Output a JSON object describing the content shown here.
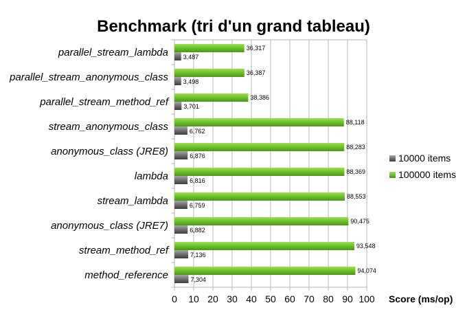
{
  "chart_data": {
    "type": "bar",
    "orientation": "horizontal",
    "title": "Benchmark (tri d'un grand tableau)",
    "xlabel": "Score (ms/op)",
    "ylabel": "",
    "xlim": [
      0,
      100
    ],
    "x_ticks": [
      "0",
      "10",
      "20",
      "30",
      "40",
      "50",
      "60",
      "70",
      "80",
      "90",
      "100"
    ],
    "grid": "vertical",
    "legend_position": "right",
    "categories": [
      "parallel_stream_lambda",
      "parallel_stream_anonymous_class",
      "parallel_stream_method_ref",
      "stream_anonymous_class",
      "anonymous_class (JRE8)",
      "lambda",
      "stream_lambda",
      "anonymous_class (JRE7)",
      "stream_method_ref",
      "method_reference"
    ],
    "series": [
      {
        "name": "100000 items",
        "color": "#6cc02a",
        "values": [
          36.317,
          36.387,
          38.386,
          88.118,
          88.283,
          88.369,
          88.553,
          90.475,
          93.548,
          94.074
        ],
        "labels": [
          "36,317",
          "36,387",
          "38,386",
          "88,118",
          "88,283",
          "88,369",
          "88,553",
          "90,475",
          "93,548",
          "94,074"
        ]
      },
      {
        "name": "10000 items",
        "color": "#6e6e6e",
        "values": [
          3.487,
          3.498,
          3.701,
          6.762,
          6.876,
          6.816,
          6.759,
          6.882,
          7.136,
          7.304
        ],
        "labels": [
          "3,487",
          "3,498",
          "3,701",
          "6,762",
          "6,876",
          "6,816",
          "6,759",
          "6,882",
          "7,136",
          "7,304"
        ]
      }
    ],
    "legend_order": [
      "10000 items",
      "100000 items"
    ]
  }
}
